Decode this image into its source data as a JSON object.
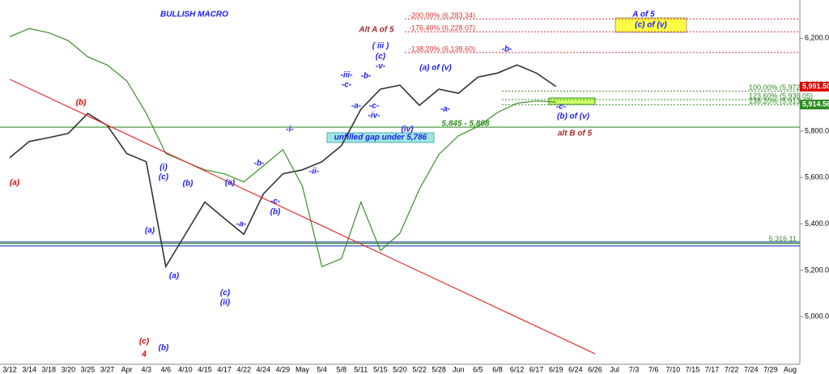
{
  "chart_data": {
    "type": "line",
    "categories": [
      "3/12",
      "3/14",
      "3/18",
      "3/20",
      "3/25",
      "3/27",
      "Apr",
      "4/3",
      "4/6",
      "4/10",
      "4/15",
      "4/17",
      "4/22",
      "4/24",
      "4/29",
      "May",
      "5/4",
      "5/8",
      "5/11",
      "5/15",
      "5/20",
      "5/22",
      "5/28",
      "Jun",
      "6/5",
      "6/8",
      "6/12",
      "6/17",
      "6/19",
      "6/24",
      "6/26",
      "Jul",
      "7/3",
      "7/6",
      "7/10",
      "7/15",
      "7/17",
      "7/22",
      "7/24",
      "7/29",
      "Aug"
    ],
    "series": [
      {
        "color": "#333333",
        "values": [
          5685,
          5755,
          5772,
          5790,
          5876,
          5824,
          5703,
          5668,
          5216,
          5355,
          5494,
          5424,
          5355,
          5529,
          5616,
          5633,
          5668,
          5737,
          5894,
          5981,
          5998,
          5911,
          5981,
          5963,
          6033,
          6050,
          6085,
          6050,
          5992,
          null,
          null,
          null,
          null,
          null,
          null,
          null,
          null,
          null,
          null,
          null,
          null
        ]
      },
      {
        "color": "#3a8f2a",
        "values": [
          6207,
          6242,
          6224,
          6190,
          6120,
          6085,
          6016,
          5877,
          5703,
          5668,
          5633,
          5616,
          5581,
          5650,
          5720,
          5563,
          5216,
          5250,
          5494,
          5285,
          5360,
          5550,
          5700,
          5780,
          5820,
          5880,
          5920,
          5930,
          5925,
          null,
          null,
          null,
          null,
          null,
          null,
          null,
          null,
          null,
          null,
          null,
          null
        ]
      },
      {
        "color": "#e53030",
        "values": [
          6023,
          null,
          null,
          null,
          null,
          null,
          null,
          null,
          null,
          null,
          null,
          null,
          null,
          null,
          null,
          null,
          null,
          null,
          null,
          null,
          null,
          null,
          null,
          null,
          null,
          null,
          null,
          null,
          null,
          null,
          4840,
          null,
          null,
          null,
          null,
          null,
          null,
          null,
          null,
          null,
          null
        ]
      }
    ],
    "ylim": [
      4795,
      6365
    ],
    "yticks": [
      {
        "value": 5000,
        "label": "5,000.00"
      },
      {
        "value": 5200,
        "label": "5,200.00"
      },
      {
        "value": 5400,
        "label": "5,400.00"
      },
      {
        "value": 5600,
        "label": "5,600.00"
      },
      {
        "value": 5800,
        "label": "5,800.00"
      },
      {
        "value": 6000,
        "label": "6,000.00"
      },
      {
        "value": 6200,
        "label": "6,200.00"
      }
    ],
    "levels": [
      {
        "value": 5316.11,
        "label": "5,316.11",
        "color": "#3a8f2a"
      },
      {
        "value": 5322,
        "color": "#1f3fb0"
      },
      {
        "value": 5305,
        "color": "#1f3fb0"
      },
      {
        "value": 5817,
        "color": "#3a8f2a"
      }
    ],
    "fib_levels": [
      {
        "value": 6283.34,
        "label": "-200.00% (6,283.34)",
        "color": "#e53030"
      },
      {
        "value": 6228.07,
        "label": "-176.40% (6,228.07)",
        "color": "#e53030"
      },
      {
        "value": 6138.6,
        "label": "-138.20% (6,138.60)",
        "color": "#e53030"
      },
      {
        "value": 5972.55,
        "label": "100.00% (5,972.55)",
        "color": "#3a8f2a"
      },
      {
        "value": 5936.05,
        "label": "123.60% (5,936.05)",
        "color": "#3a8f2a"
      },
      {
        "value": 5913.47,
        "label": "138.20% (5,913.47)",
        "color": "#3a8f2a"
      }
    ],
    "price_tags": [
      {
        "value": 5991.5,
        "label": "5,991.50",
        "color": "#e00000"
      },
      {
        "value": 5914.56,
        "label": "5,914.56",
        "color": "#2e8b22"
      }
    ],
    "annotations": [
      {
        "text": "BULLISH MACRO",
        "color": "#1a1aff"
      },
      {
        "text": "Alt A of 5",
        "color": "#a52a2a"
      },
      {
        "text": "A of 5",
        "color": "#1a1aff"
      },
      {
        "text": "(c) of (v)",
        "color": "#1a1aff"
      },
      {
        "text": "(b)",
        "color": "#e00000"
      },
      {
        "text": "(a)",
        "color": "#e00000"
      },
      {
        "text": "(c)",
        "color": "#e00000"
      },
      {
        "text": "4",
        "color": "#e00000"
      },
      {
        "text": "(i)",
        "color": "#1a1aff"
      },
      {
        "text": "(c)",
        "color": "#1a1aff"
      },
      {
        "text": "(b)",
        "color": "#1a1aff"
      },
      {
        "text": "(a)",
        "color": "#1a1aff"
      },
      {
        "text": "(a)",
        "color": "#1a1aff"
      },
      {
        "text": "(b)",
        "color": "#1a1aff"
      },
      {
        "text": "(a)",
        "color": "#1a1aff"
      },
      {
        "text": "-a-",
        "color": "#1a1aff"
      },
      {
        "text": "-c-",
        "color": "#1a1aff"
      },
      {
        "text": "(b)",
        "color": "#1a1aff"
      },
      {
        "text": "(c)",
        "color": "#1a1aff"
      },
      {
        "text": "(ii)",
        "color": "#1a1aff"
      },
      {
        "text": "-b-",
        "color": "#1a1aff"
      },
      {
        "text": "-i-",
        "color": "#1a1aff"
      },
      {
        "text": "-ii-",
        "color": "#1a1aff"
      },
      {
        "text": "-iii-",
        "color": "#1a1aff"
      },
      {
        "text": "-c-",
        "color": "#1a1aff"
      },
      {
        "text": "-a-",
        "color": "#1a1aff"
      },
      {
        "text": "-b-",
        "color": "#1a1aff"
      },
      {
        "text": "( iii )",
        "color": "#1a1aff"
      },
      {
        "text": "(c)",
        "color": "#1a1aff"
      },
      {
        "text": "-v-",
        "color": "#1a1aff"
      },
      {
        "text": "-c-",
        "color": "#1a1aff"
      },
      {
        "text": "-iv-",
        "color": "#1a1aff"
      },
      {
        "text": "(iv)",
        "color": "#1a1aff"
      },
      {
        "text": "(a) of (v)",
        "color": "#1a1aff"
      },
      {
        "text": "-a-",
        "color": "#1a1aff"
      },
      {
        "text": "-b-",
        "color": "#1a1aff"
      },
      {
        "text": "-c-",
        "color": "#1a1aff"
      },
      {
        "text": "(b) of (v)",
        "color": "#1a1aff"
      },
      {
        "text": "alt  B of 5",
        "color": "#a52a2a"
      },
      {
        "text": "5,845 - 5,808",
        "color": "#2e8b22"
      },
      {
        "text": "unfilled gap under 5,786",
        "color": "#1a1aff"
      }
    ]
  }
}
